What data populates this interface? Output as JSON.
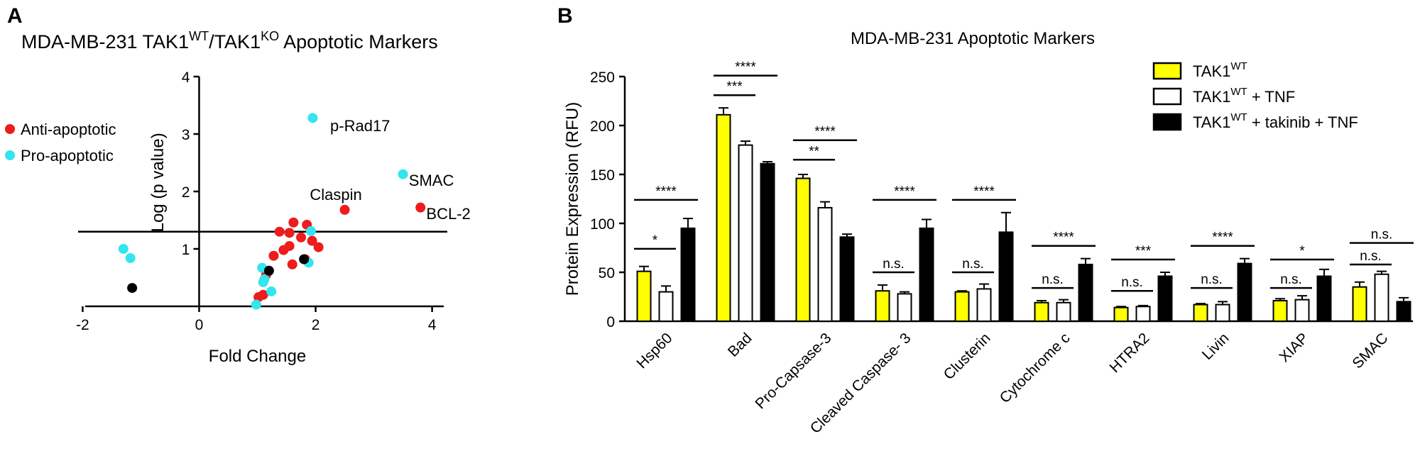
{
  "panels": {
    "a": {
      "letter": "A",
      "title_main": "MDA-MB-231 TAK1",
      "title_sup1": "WT",
      "title_mid": "/TAK1",
      "title_sup2": "KO",
      "title_end": " Apoptotic Markers"
    },
    "b": {
      "letter": "B",
      "title": "MDA-MB-231 Apoptotic Markers"
    }
  },
  "chart_data": [
    {
      "type": "scatter",
      "title": "MDA-MB-231 TAK1WT/TAK1KO Apoptotic Markers",
      "xlabel": "Fold Change",
      "ylabel": "Log (p value)",
      "xlim": [
        -2.2,
        4.2
      ],
      "ylim": [
        0,
        4
      ],
      "xticks": [
        -2,
        0,
        2,
        4
      ],
      "yticks": [
        1,
        2,
        3,
        4
      ],
      "threshold_y": 1.3,
      "colors": {
        "anti": "#ee1c1c",
        "pro": "#33e5ee",
        "other": "#000000"
      },
      "legend": [
        {
          "label": "Anti-apoptotic",
          "group": "anti"
        },
        {
          "label": "Pro-apoptotic",
          "group": "pro"
        }
      ],
      "annotations": [
        {
          "text": "p-Rad17",
          "x": 2.25,
          "y": 3.15
        },
        {
          "text": "SMAC",
          "x": 3.6,
          "y": 2.2
        },
        {
          "text": "Claspin",
          "x": 1.9,
          "y": 1.95
        },
        {
          "text": "BCL-2",
          "x": 3.9,
          "y": 1.62
        }
      ],
      "points": [
        {
          "x": 1.95,
          "y": 3.28,
          "group": "pro"
        },
        {
          "x": 3.5,
          "y": 2.3,
          "group": "pro"
        },
        {
          "x": 2.5,
          "y": 1.68,
          "group": "anti"
        },
        {
          "x": 3.8,
          "y": 1.72,
          "group": "anti"
        },
        {
          "x": -1.3,
          "y": 1.0,
          "group": "pro"
        },
        {
          "x": -1.18,
          "y": 0.84,
          "group": "pro"
        },
        {
          "x": -1.15,
          "y": 0.32,
          "group": "other"
        },
        {
          "x": 1.38,
          "y": 1.3,
          "group": "anti"
        },
        {
          "x": 1.62,
          "y": 1.46,
          "group": "anti"
        },
        {
          "x": 1.85,
          "y": 1.42,
          "group": "anti"
        },
        {
          "x": 1.55,
          "y": 1.28,
          "group": "anti"
        },
        {
          "x": 1.75,
          "y": 1.2,
          "group": "anti"
        },
        {
          "x": 1.94,
          "y": 1.14,
          "group": "anti"
        },
        {
          "x": 2.05,
          "y": 1.03,
          "group": "anti"
        },
        {
          "x": 1.55,
          "y": 1.05,
          "group": "anti"
        },
        {
          "x": 1.45,
          "y": 0.98,
          "group": "anti"
        },
        {
          "x": 1.28,
          "y": 0.88,
          "group": "anti"
        },
        {
          "x": 1.82,
          "y": 0.82,
          "group": "anti"
        },
        {
          "x": 1.6,
          "y": 0.73,
          "group": "anti"
        },
        {
          "x": 1.15,
          "y": 0.55,
          "group": "anti"
        },
        {
          "x": 1.1,
          "y": 0.2,
          "group": "anti"
        },
        {
          "x": 1.02,
          "y": 0.16,
          "group": "anti"
        },
        {
          "x": 1.92,
          "y": 1.31,
          "group": "pro"
        },
        {
          "x": 1.88,
          "y": 0.76,
          "group": "pro"
        },
        {
          "x": 1.08,
          "y": 0.67,
          "group": "pro"
        },
        {
          "x": 1.12,
          "y": 0.47,
          "group": "pro"
        },
        {
          "x": 1.1,
          "y": 0.42,
          "group": "pro"
        },
        {
          "x": 1.24,
          "y": 0.26,
          "group": "pro"
        },
        {
          "x": 0.98,
          "y": 0.03,
          "group": "pro"
        },
        {
          "x": 1.2,
          "y": 0.62,
          "group": "other"
        },
        {
          "x": 1.8,
          "y": 0.82,
          "group": "other"
        }
      ]
    },
    {
      "type": "bar",
      "title": "MDA-MB-231 Apoptotic Markers",
      "ylabel": "Protein Expression (RFU)",
      "ylim": [
        0,
        250
      ],
      "yticks": [
        0,
        50,
        100,
        150,
        200,
        250
      ],
      "categories": [
        "Hsp60",
        "Bad",
        "Pro-Capsase-3",
        "Cleaved Caspase- 3",
        "Clusterin",
        "Cytochrome c",
        "HTRA2",
        "Livin",
        "XIAP",
        "SMAC"
      ],
      "legend": [
        {
          "base": "TAK1",
          "sup": "WT",
          "suffix": "",
          "fill": "#ffff00"
        },
        {
          "base": "TAK1",
          "sup": "WT",
          "suffix": " + TNF",
          "fill": "#ffffff"
        },
        {
          "base": "TAK1",
          "sup": "WT",
          "suffix": " + takinib + TNF",
          "fill": "#000000"
        }
      ],
      "series": [
        {
          "values": [
            51,
            211,
            146,
            31,
            30,
            19,
            14,
            17,
            21,
            35
          ],
          "errors": [
            5,
            7,
            4,
            6,
            1,
            2,
            1,
            1,
            2,
            5
          ]
        },
        {
          "values": [
            30,
            180,
            116,
            28,
            33,
            19,
            15,
            17,
            22,
            48
          ],
          "errors": [
            6,
            4,
            6,
            2,
            5,
            3,
            1,
            3,
            4,
            3
          ]
        },
        {
          "values": [
            95,
            161,
            86,
            95,
            91,
            58,
            46,
            59,
            46,
            20
          ],
          "errors": [
            10,
            2,
            3,
            9,
            20,
            6,
            4,
            5,
            7,
            4
          ]
        }
      ],
      "significance": [
        {
          "cat": 0,
          "from": 0,
          "to": 1,
          "label": "*",
          "y": 74
        },
        {
          "cat": 0,
          "from": 0,
          "to": 2,
          "label": "****",
          "y": 124
        },
        {
          "cat": 1,
          "from": 0,
          "to": 1,
          "label": "***",
          "y": 231
        },
        {
          "cat": 1,
          "from": 0,
          "to": 2,
          "label": "****",
          "y": 251
        },
        {
          "cat": 2,
          "from": 0,
          "to": 1,
          "label": "**",
          "y": 165
        },
        {
          "cat": 2,
          "from": 0,
          "to": 2,
          "label": "****",
          "y": 185
        },
        {
          "cat": 3,
          "from": 0,
          "to": 1,
          "label": "n.s.",
          "y": 50
        },
        {
          "cat": 3,
          "from": 0,
          "to": 2,
          "label": "****",
          "y": 124
        },
        {
          "cat": 4,
          "from": 0,
          "to": 1,
          "label": "n.s.",
          "y": 50
        },
        {
          "cat": 4,
          "from": 0,
          "to": 2,
          "label": "****",
          "y": 124
        },
        {
          "cat": 5,
          "from": 0,
          "to": 1,
          "label": "n.s.",
          "y": 34
        },
        {
          "cat": 5,
          "from": 0,
          "to": 2,
          "label": "****",
          "y": 77
        },
        {
          "cat": 6,
          "from": 0,
          "to": 1,
          "label": "n.s.",
          "y": 31
        },
        {
          "cat": 6,
          "from": 0,
          "to": 2,
          "label": "***",
          "y": 63
        },
        {
          "cat": 7,
          "from": 0,
          "to": 1,
          "label": "n.s.",
          "y": 34
        },
        {
          "cat": 7,
          "from": 0,
          "to": 2,
          "label": "****",
          "y": 77
        },
        {
          "cat": 8,
          "from": 0,
          "to": 1,
          "label": "n.s.",
          "y": 34
        },
        {
          "cat": 8,
          "from": 0,
          "to": 2,
          "label": "*",
          "y": 63
        },
        {
          "cat": 9,
          "from": 0,
          "to": 1,
          "label": "n.s.",
          "y": 58
        },
        {
          "cat": 9,
          "from": 0,
          "to": 2,
          "label": "n.s.",
          "y": 80
        }
      ]
    }
  ]
}
